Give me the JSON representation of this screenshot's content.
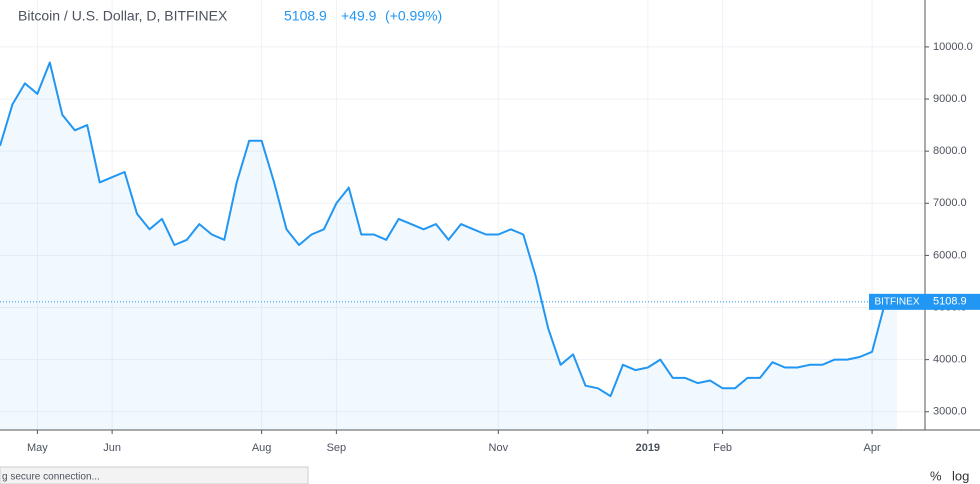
{
  "header": {
    "symbol": "Bitcoin / U.S. Dollar, D, BITFINEX",
    "last": 5108.9,
    "change": "+49.9",
    "change_pct": "(+0.99%)"
  },
  "chart_data": {
    "type": "line",
    "color": "#2196f3",
    "categories": [
      null,
      null,
      null,
      "May",
      null,
      null,
      null,
      null,
      null,
      "Jun",
      null,
      null,
      null,
      null,
      null,
      null,
      null,
      null,
      null,
      null,
      null,
      "Aug",
      null,
      null,
      null,
      null,
      null,
      "Sep",
      null,
      null,
      null,
      null,
      null,
      null,
      null,
      null,
      null,
      null,
      null,
      null,
      "Nov",
      null,
      null,
      null,
      null,
      null,
      null,
      null,
      null,
      null,
      null,
      null,
      "2019",
      null,
      null,
      null,
      null,
      null,
      "Feb",
      null,
      null,
      null,
      null,
      null,
      null,
      null,
      null,
      null,
      null,
      null,
      "Apr",
      null,
      null
    ],
    "values": [
      8100,
      8900,
      9300,
      9100,
      9700,
      8700,
      8400,
      8500,
      7400,
      7500,
      7600,
      6800,
      6500,
      6700,
      6200,
      6300,
      6600,
      6400,
      6300,
      7400,
      8200,
      8200,
      7400,
      6500,
      6200,
      6400,
      6500,
      7000,
      7300,
      6400,
      6400,
      6300,
      6700,
      6600,
      6500,
      6600,
      6300,
      6600,
      6500,
      6400,
      6400,
      6500,
      6400,
      5600,
      4600,
      3900,
      4100,
      3500,
      3450,
      3300,
      3900,
      3800,
      3850,
      4000,
      3650,
      3650,
      3550,
      3600,
      3450,
      3450,
      3650,
      3650,
      3950,
      3850,
      3850,
      3900,
      3900,
      4000,
      4000,
      4050,
      4150,
      5050,
      5100
    ],
    "ylim": [
      2650,
      10900
    ],
    "yticks": [
      {
        "value": 3000,
        "label": "3000.0"
      },
      {
        "value": 4000,
        "label": "4000.0"
      },
      {
        "value": 5000,
        "label": "5000.0"
      },
      {
        "value": 6000,
        "label": "6000.0"
      },
      {
        "value": 7000,
        "label": "7000.0"
      },
      {
        "value": 8000,
        "label": "8000.0"
      },
      {
        "value": 9000,
        "label": "9000.0"
      },
      {
        "value": 10000,
        "label": "10000.0"
      }
    ],
    "grid": true,
    "price_line": {
      "label": "BITFINEX",
      "value": 5108.9
    }
  },
  "scale_buttons": [
    "%",
    "log"
  ],
  "status": "g secure connection..."
}
